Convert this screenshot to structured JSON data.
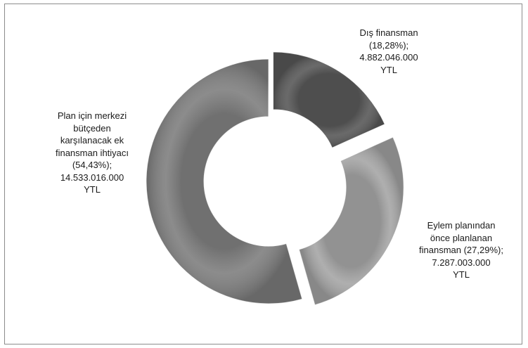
{
  "chart_data": {
    "type": "pie",
    "title": "",
    "slices": [
      {
        "lines": [
          "Dış finansman",
          "(18,28%);",
          "4.882.046.000",
          "YTL"
        ],
        "value": 4882046000,
        "percent": 18.28,
        "color": "#595959"
      },
      {
        "lines": [
          "Eylem planından",
          "önce planlanan",
          "finansman (27,29%);",
          "7.287.003.000",
          "YTL"
        ],
        "value": 7287003000,
        "percent": 27.29,
        "color": "#a6a6a6"
      },
      {
        "lines": [
          "Plan için merkezi",
          "bütçeden",
          "karşılanacak ek",
          "finansman ihtiyacı",
          "(54,43%);",
          "14.533.016.000",
          "YTL"
        ],
        "value": 14533016000,
        "percent": 54.43,
        "color": "#7f7f7f"
      }
    ]
  }
}
